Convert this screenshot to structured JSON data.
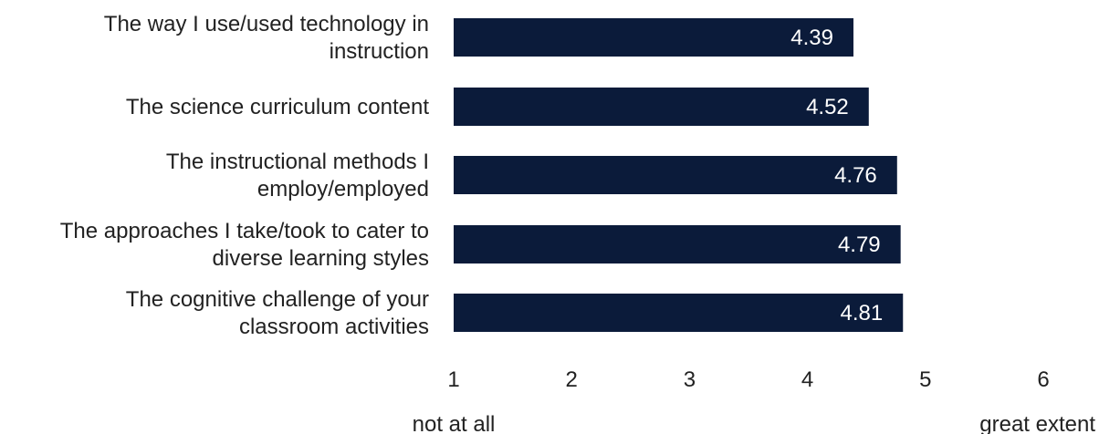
{
  "chart_data": {
    "type": "bar",
    "orientation": "horizontal",
    "categories": [
      [
        "The way I use/used technology in",
        "instruction"
      ],
      [
        "The science curriculum content"
      ],
      [
        "The instructional methods I",
        "employ/employed"
      ],
      [
        "The approaches I take/took to cater to",
        "diverse learning styles"
      ],
      [
        "The cognitive challenge of your",
        "classroom activities"
      ]
    ],
    "values": [
      4.39,
      4.52,
      4.76,
      4.79,
      4.81
    ],
    "value_labels": [
      "4.39",
      "4.52",
      "4.76",
      "4.79",
      "4.81"
    ],
    "xlim": [
      1,
      6
    ],
    "x_ticks": [
      "1",
      "2",
      "3",
      "4",
      "5",
      "6"
    ],
    "x_tick_values": [
      1,
      2,
      3,
      4,
      5,
      6
    ],
    "scale_labels": {
      "low": "not at all",
      "high": "great extent"
    },
    "grid": false,
    "legend": "none",
    "colors": {
      "bar": "#0b1b3a",
      "bar_label": "#ffffff",
      "text": "#222222"
    }
  }
}
